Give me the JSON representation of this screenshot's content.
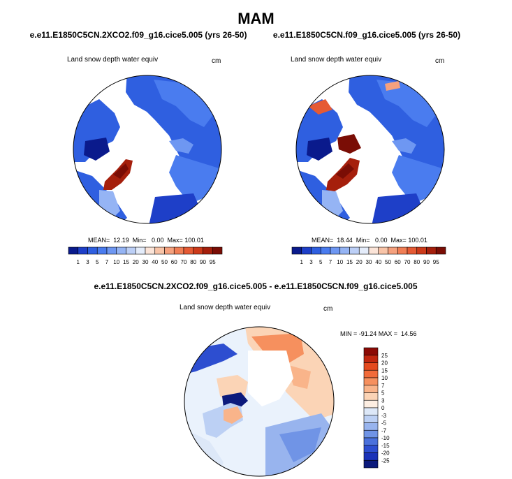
{
  "title": "MAM",
  "panels": [
    {
      "case_title": "e.e11.E1850C5CN.2XCO2.f09_g16.cice5.005 (yrs 26-50)",
      "variable": "Land snow depth water equiv",
      "units": "cm",
      "stats": "MEAN=  12.19  Min=   0.00  Max= 100.01"
    },
    {
      "case_title": "e.e11.E1850C5CN.f09_g16.cice5.005 (yrs 26-50)",
      "variable": "Land snow depth water equiv",
      "units": "cm",
      "stats": "MEAN=  18.44  Min=   0.00  Max= 100.01"
    },
    {
      "case_title": "e.e11.E1850C5CN.2XCO2.f09_g16.cice5.005 - e.e11.E1850C5CN.f09_g16.cice5.005",
      "variable": "Land snow depth water equiv",
      "units": "cm",
      "stats": "MIN = -91.24 MAX =  14.56"
    }
  ],
  "chart_data": [
    {
      "type": "heatmap",
      "projection": "north polar stereographic",
      "title": "e.e11.E1850C5CN.2XCO2.f09_g16.cice5.005 (yrs 26-50)",
      "subtitle": "Land snow depth water equiv",
      "units": "cm",
      "mean": 12.19,
      "min": 0.0,
      "max": 100.01,
      "colorbar_levels": [
        1,
        3,
        5,
        7,
        10,
        15,
        20,
        30,
        40,
        50,
        60,
        70,
        80,
        90,
        95
      ],
      "colorbar_colors": [
        "#0a1a8c",
        "#1e3fc8",
        "#2f5fe0",
        "#4a7cef",
        "#6e97f2",
        "#95b4f4",
        "#bccff6",
        "#e4ecfa",
        "#fbe4d8",
        "#f8c4a8",
        "#f5a17e",
        "#f07e55",
        "#e55a34",
        "#cc3a1a",
        "#a51f0c",
        "#7a0d05"
      ],
      "colorbar_orientation": "horizontal"
    },
    {
      "type": "heatmap",
      "projection": "north polar stereographic",
      "title": "e.e11.E1850C5CN.f09_g16.cice5.005 (yrs 26-50)",
      "subtitle": "Land snow depth water equiv",
      "units": "cm",
      "mean": 18.44,
      "min": 0.0,
      "max": 100.01,
      "colorbar_levels": [
        1,
        3,
        5,
        7,
        10,
        15,
        20,
        30,
        40,
        50,
        60,
        70,
        80,
        90,
        95
      ],
      "colorbar_colors": [
        "#0a1a8c",
        "#1e3fc8",
        "#2f5fe0",
        "#4a7cef",
        "#6e97f2",
        "#95b4f4",
        "#bccff6",
        "#e4ecfa",
        "#fbe4d8",
        "#f8c4a8",
        "#f5a17e",
        "#f07e55",
        "#e55a34",
        "#cc3a1a",
        "#a51f0c",
        "#7a0d05"
      ],
      "colorbar_orientation": "horizontal"
    },
    {
      "type": "heatmap",
      "projection": "north polar stereographic",
      "title": "e.e11.E1850C5CN.2XCO2.f09_g16.cice5.005 - e.e11.E1850C5CN.f09_g16.cice5.005",
      "subtitle": "Land snow depth water equiv",
      "units": "cm",
      "min": -91.24,
      "max": 14.56,
      "colorbar_levels": [
        25,
        20,
        15,
        10,
        7,
        5,
        3,
        0,
        -3,
        -5,
        -7,
        -10,
        -15,
        -20,
        -25
      ],
      "colorbar_colors": [
        "#8b0a05",
        "#c0260f",
        "#e44a1f",
        "#f26b3a",
        "#f6905e",
        "#f9b48a",
        "#fbd4b6",
        "#fdeee2",
        "#dde8f8",
        "#bcd0f4",
        "#98b4ee",
        "#7094e6",
        "#4b71dc",
        "#2d4ed0",
        "#1a32b8",
        "#0c1a7c"
      ],
      "colorbar_orientation": "vertical"
    }
  ]
}
